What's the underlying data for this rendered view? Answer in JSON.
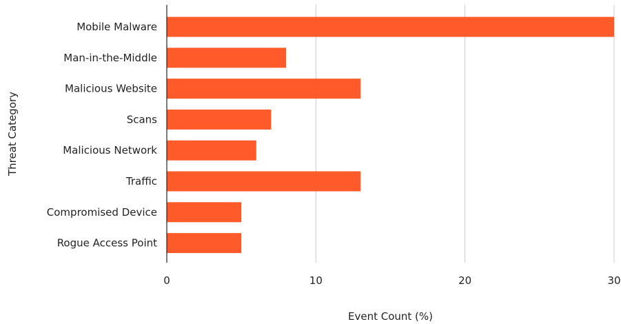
{
  "chart_data": {
    "type": "bar",
    "orientation": "horizontal",
    "title": "",
    "xlabel": "Event Count (%)",
    "ylabel": "Threat Category",
    "categories": [
      "Mobile Malware",
      "Man-in-the-Middle",
      "Malicious Website",
      "Scans",
      "Malicious Network",
      "Traffic",
      "Compromised Device",
      "Rogue Access Point"
    ],
    "values": [
      30,
      8,
      13,
      7,
      6,
      13,
      5,
      5
    ],
    "xlim": [
      0,
      30
    ],
    "xticks": [
      "0",
      "10",
      "20",
      "30"
    ],
    "grid": "vertical",
    "bar_color": "#ff5a2a",
    "legend": "none"
  }
}
